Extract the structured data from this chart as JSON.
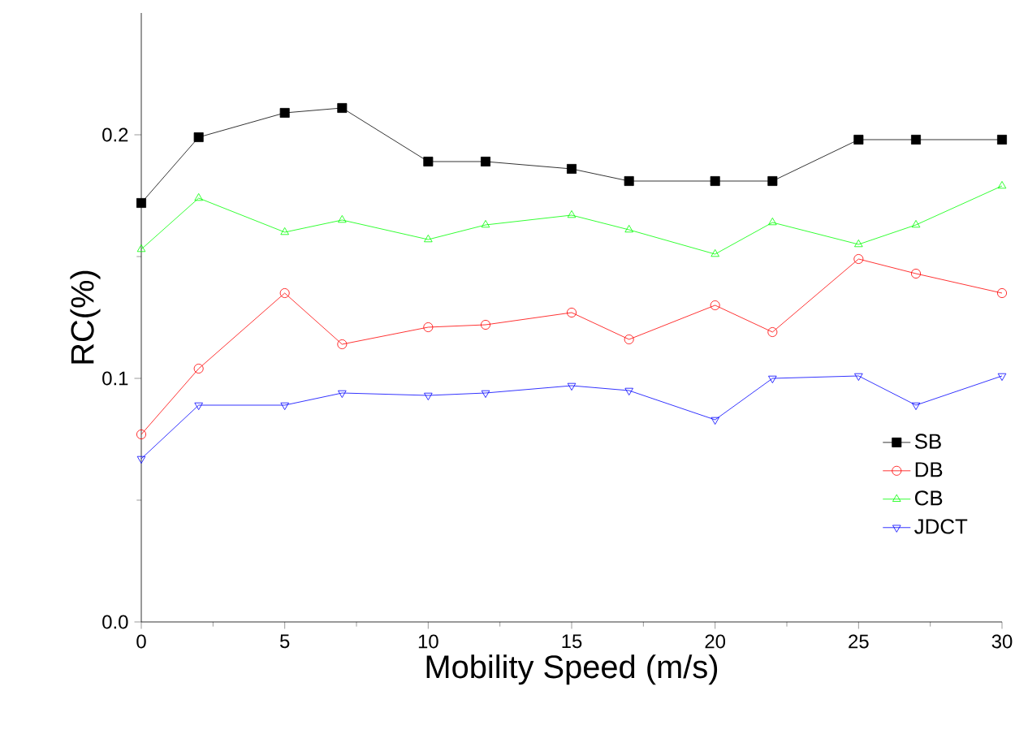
{
  "chart_data": {
    "type": "line",
    "xlabel": "Mobility Speed (m/s)",
    "ylabel": "RC(%)",
    "x": [
      0,
      2,
      5,
      7,
      10,
      12,
      15,
      17,
      20,
      22,
      25,
      27,
      30
    ],
    "series": [
      {
        "name": "SB",
        "color": "#000000",
        "marker": "square",
        "values": [
          0.172,
          0.199,
          0.209,
          0.211,
          0.189,
          0.189,
          0.186,
          0.181,
          0.181,
          0.181,
          0.198,
          0.198,
          0.198
        ]
      },
      {
        "name": "DB",
        "color": "#ff0000",
        "marker": "circle",
        "values": [
          0.077,
          0.104,
          0.135,
          0.114,
          0.121,
          0.122,
          0.127,
          0.116,
          0.13,
          0.119,
          0.149,
          0.143,
          0.135
        ]
      },
      {
        "name": "CB",
        "color": "#00ff00",
        "marker": "triangle",
        "values": [
          0.153,
          0.174,
          0.16,
          0.165,
          0.157,
          0.163,
          0.167,
          0.161,
          0.151,
          0.164,
          0.155,
          0.163,
          0.179
        ]
      },
      {
        "name": "JDCT",
        "color": "#0000ff",
        "marker": "triangle down",
        "values": [
          0.067,
          0.089,
          0.089,
          0.094,
          0.093,
          0.094,
          0.097,
          0.095,
          0.083,
          0.1,
          0.101,
          0.089,
          0.101
        ]
      }
    ],
    "xlim": [
      0,
      30
    ],
    "xticks": [
      0,
      5,
      10,
      15,
      20,
      25,
      30
    ],
    "ylim": [
      0,
      0.25
    ],
    "yticks": [
      {
        "value": 0,
        "label": "0.0"
      },
      0.1,
      0.2
    ],
    "legend": "right",
    "grid": false
  }
}
